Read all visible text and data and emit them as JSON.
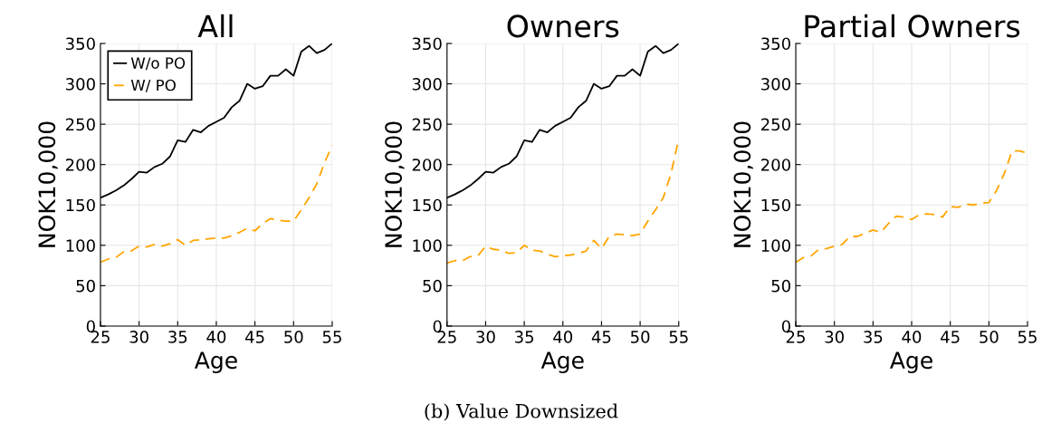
{
  "chart_data": [
    {
      "type": "line",
      "title": "All",
      "xlabel": "Age",
      "ylabel": "NOK10,000",
      "xlim": [
        25,
        55
      ],
      "xticks": [
        25,
        30,
        35,
        40,
        45,
        50,
        55
      ],
      "ylim": [
        0,
        350
      ],
      "yticks": [
        0,
        50,
        100,
        150,
        200,
        250,
        300,
        350
      ],
      "grid": true,
      "legend": "top left",
      "x": [
        25,
        26,
        27,
        28,
        29,
        30,
        31,
        32,
        33,
        34,
        35,
        36,
        37,
        38,
        39,
        40,
        41,
        42,
        43,
        44,
        45,
        46,
        47,
        48,
        49,
        50,
        51,
        52,
        53,
        54,
        55
      ],
      "series": [
        {
          "name": "W/o PO",
          "color": "#000000",
          "line_style": "solid",
          "values": [
            159,
            163,
            168,
            174,
            182,
            191,
            190,
            197,
            201,
            210,
            230,
            228,
            243,
            240,
            248,
            253,
            258,
            271,
            279,
            300,
            294,
            297,
            310,
            310,
            318,
            310,
            340,
            347,
            338,
            342,
            350
          ]
        },
        {
          "name": "W/ PO",
          "color": "#ffa500",
          "line_style": "dashed",
          "values": [
            79,
            83,
            85,
            92,
            93,
            99,
            98,
            101,
            99,
            102,
            107,
            100,
            106,
            107,
            108,
            109,
            109,
            112,
            116,
            121,
            118,
            127,
            133,
            131,
            130,
            130,
            144,
            159,
            176,
            202,
            224
          ]
        }
      ],
      "annotations": [
        "(b) Value Downsized"
      ]
    },
    {
      "type": "line",
      "title": "Owners",
      "xlabel": "Age",
      "ylabel": "NOK10,000",
      "xlim": [
        25,
        55
      ],
      "xticks": [
        25,
        30,
        35,
        40,
        45,
        50,
        55
      ],
      "ylim": [
        0,
        350
      ],
      "yticks": [
        0,
        50,
        100,
        150,
        200,
        250,
        300,
        350
      ],
      "grid": true,
      "x": [
        25,
        26,
        27,
        28,
        29,
        30,
        31,
        32,
        33,
        34,
        35,
        36,
        37,
        38,
        39,
        40,
        41,
        42,
        43,
        44,
        45,
        46,
        47,
        48,
        49,
        50,
        51,
        52,
        53,
        54,
        55
      ],
      "series": [
        {
          "color": "#000000",
          "line_style": "solid",
          "values": [
            159,
            163,
            168,
            174,
            182,
            191,
            190,
            197,
            201,
            210,
            230,
            228,
            243,
            240,
            248,
            253,
            258,
            271,
            279,
            300,
            294,
            297,
            310,
            310,
            318,
            310,
            340,
            347,
            338,
            342,
            350
          ]
        },
        {
          "color": "#ffa500",
          "line_style": "dashed",
          "values": [
            78,
            81,
            81,
            86,
            87,
            99,
            95,
            94,
            90,
            91,
            100,
            94,
            93,
            89,
            86,
            87,
            88,
            90,
            93,
            106,
            96,
            111,
            114,
            113,
            112,
            114,
            130,
            144,
            159,
            189,
            232
          ]
        }
      ]
    },
    {
      "type": "line",
      "title": "Partial Owners",
      "xlabel": "Age",
      "ylabel": "NOK10,000",
      "xlim": [
        25,
        55
      ],
      "xticks": [
        25,
        30,
        35,
        40,
        45,
        50,
        55
      ],
      "ylim": [
        0,
        350
      ],
      "yticks": [
        0,
        50,
        100,
        150,
        200,
        250,
        300,
        350
      ],
      "grid": true,
      "x": [
        25,
        26,
        27,
        28,
        29,
        30,
        31,
        32,
        33,
        34,
        35,
        36,
        37,
        38,
        39,
        40,
        41,
        42,
        43,
        44,
        45,
        46,
        47,
        48,
        49,
        50,
        51,
        52,
        53,
        54,
        55
      ],
      "series": [
        {
          "color": "#ffa500",
          "line_style": "dashed",
          "values": [
            79,
            85,
            87,
            95,
            96,
            99,
            101,
            111,
            111,
            115,
            119,
            116,
            127,
            136,
            135,
            132,
            138,
            139,
            138,
            135,
            148,
            147,
            151,
            150,
            152,
            153,
            168,
            189,
            217,
            217,
            214
          ]
        }
      ]
    }
  ]
}
